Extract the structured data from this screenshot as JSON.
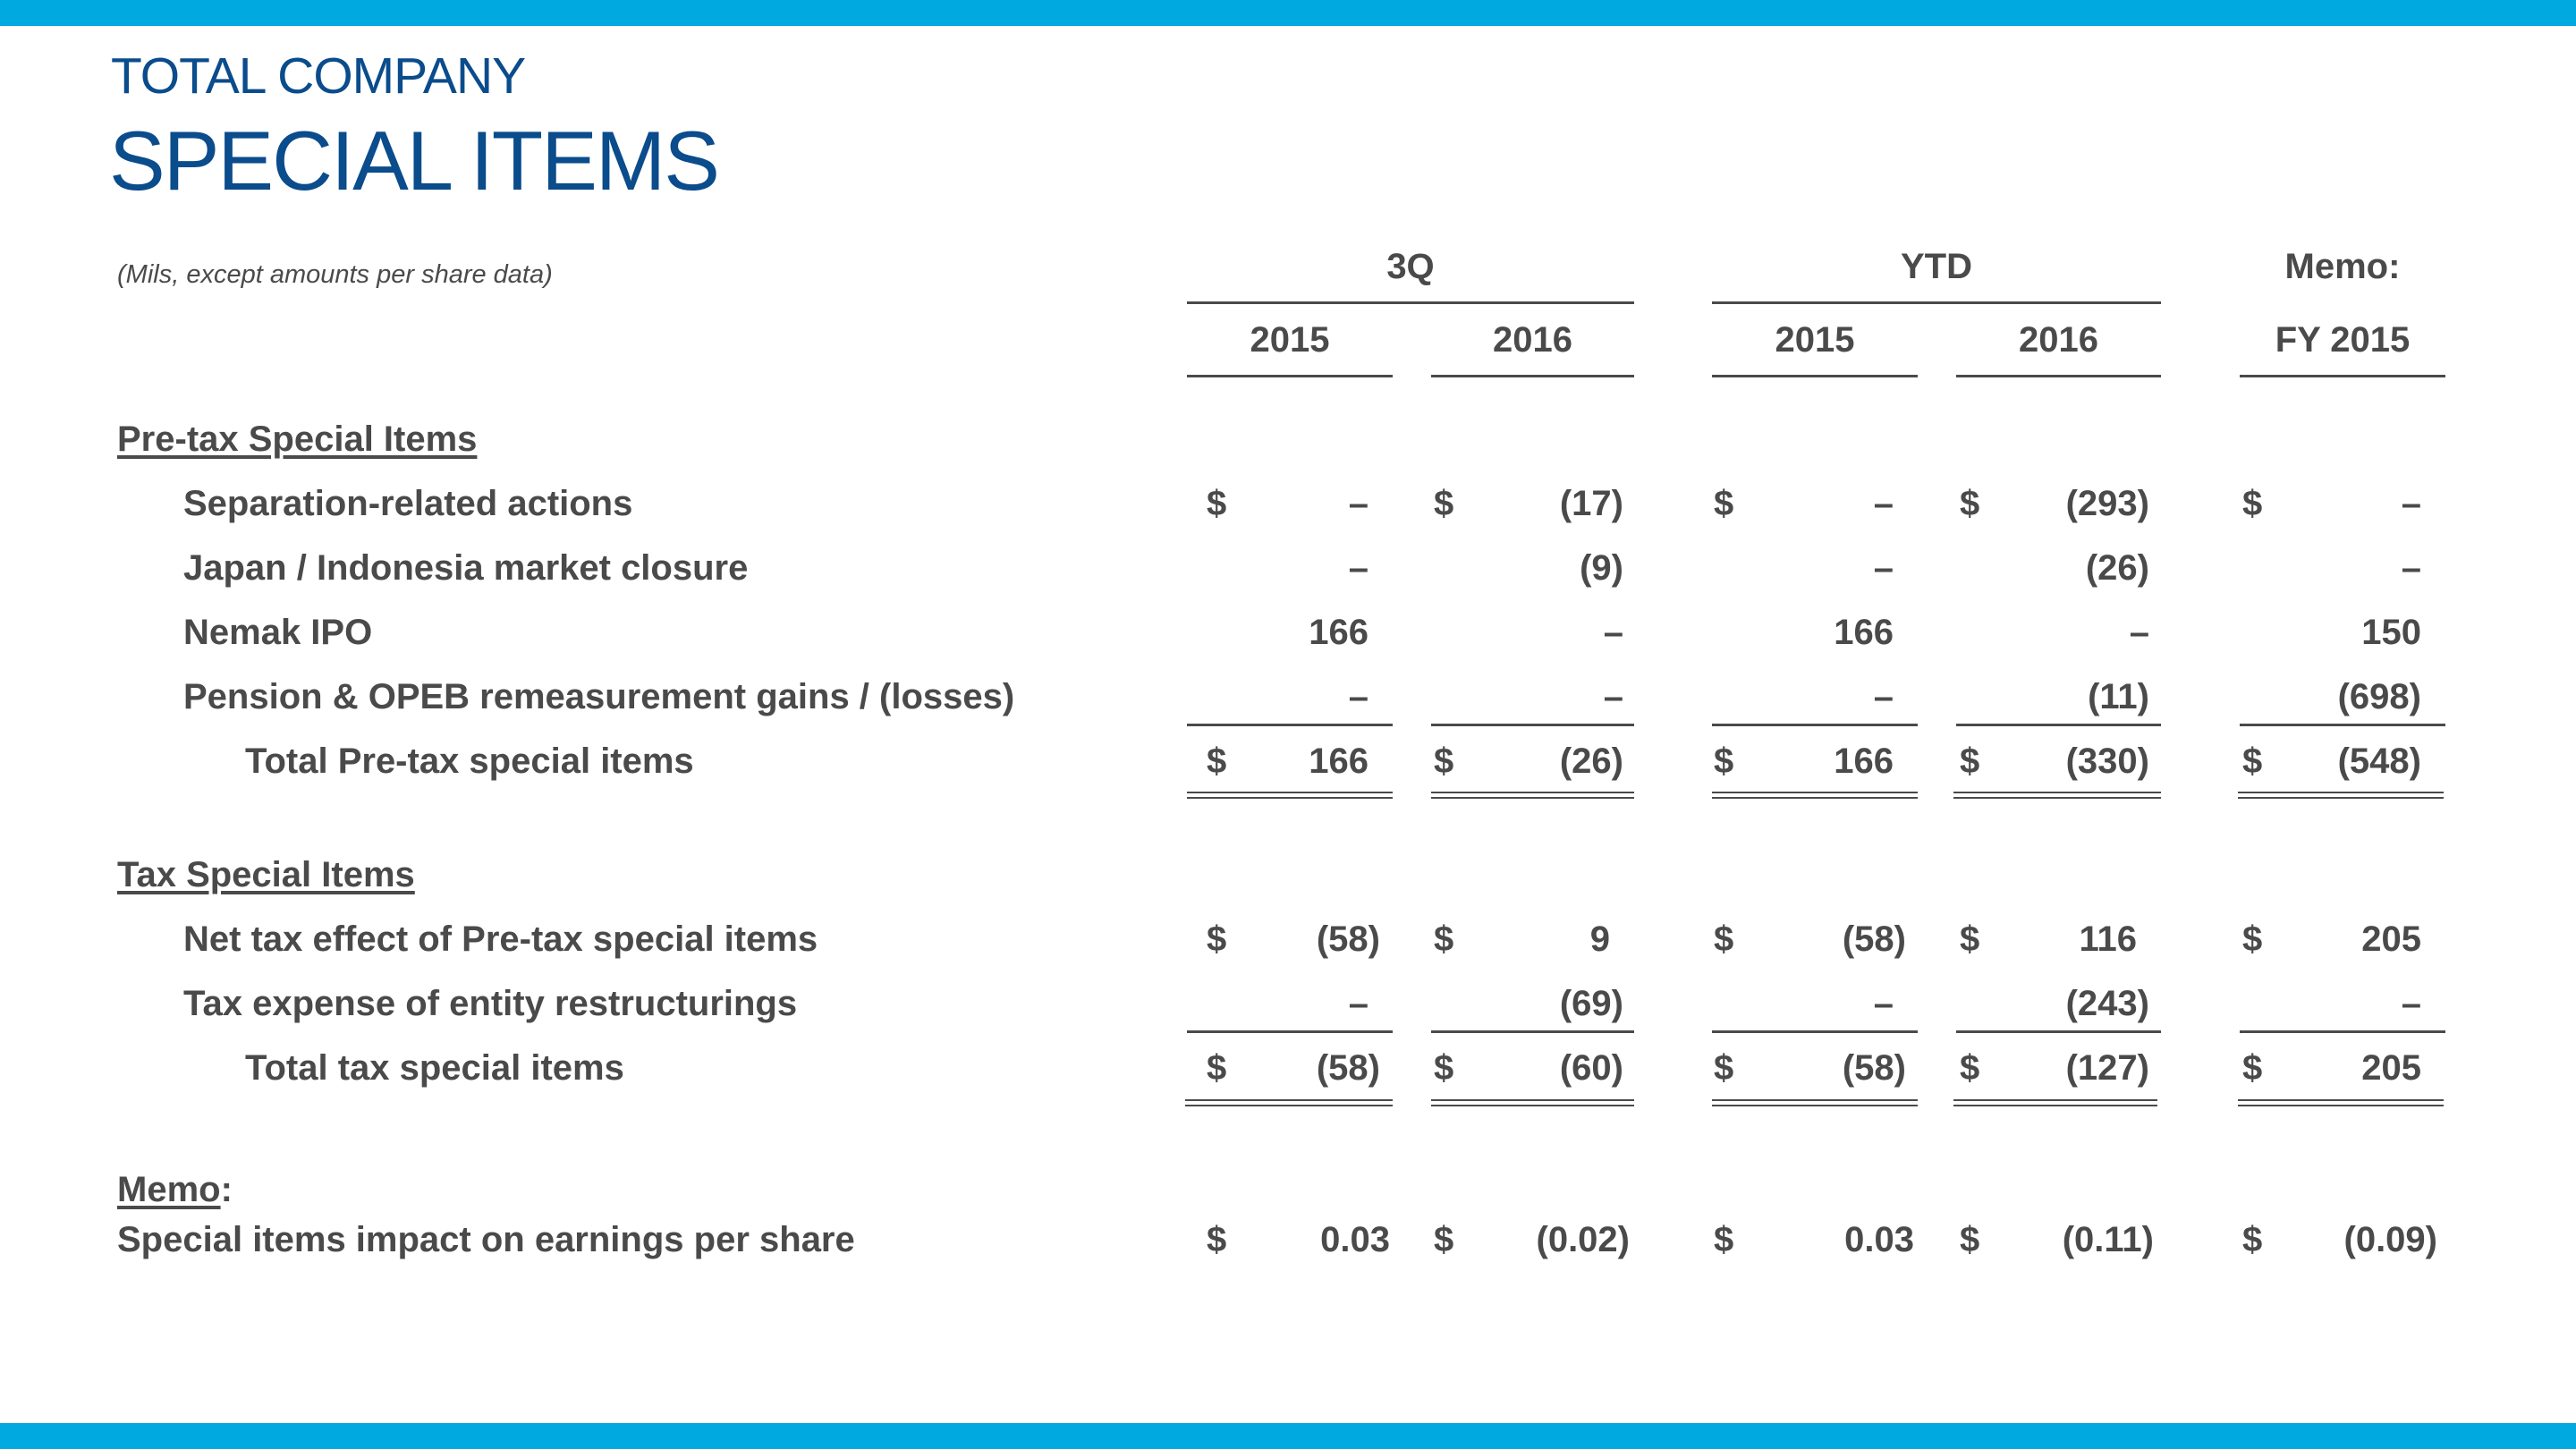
{
  "header": {
    "subtitle": "TOTAL COMPANY",
    "title": "SPECIAL ITEMS",
    "units_note": "(Mils, except amounts per share data)"
  },
  "groups": {
    "q3": "3Q",
    "ytd": "YTD",
    "memo": "Memo:"
  },
  "years": {
    "q3_2015": "2015",
    "q3_2016": "2016",
    "ytd_2015": "2015",
    "ytd_2016": "2016",
    "memo_fy": "FY 2015"
  },
  "currency": "$",
  "sections": {
    "pretax": "Pre-tax Special Items",
    "tax": "Tax Special Items",
    "memo_label": "Memo",
    "memo_colon": ":"
  },
  "rows": [
    {
      "label": "Separation-related actions",
      "values": [
        "–",
        "(17)",
        "–",
        "(293)",
        "–"
      ]
    },
    {
      "label": "Japan / Indonesia market closure",
      "values": [
        "–",
        "(9)",
        "–",
        "(26)",
        "–"
      ]
    },
    {
      "label": "Nemak IPO",
      "values": [
        "166",
        "–",
        "166",
        "–",
        "150"
      ]
    },
    {
      "label": "Pension & OPEB remeasurement  gains / (losses)",
      "values": [
        "–",
        "–",
        "–",
        "(11)",
        "(698)"
      ]
    },
    {
      "label": "Total Pre-tax special items",
      "values": [
        "166",
        "(26)",
        "166",
        "(330)",
        "(548)"
      ]
    },
    {
      "label": "Net tax effect of Pre-tax special items",
      "values": [
        "(58)",
        "9",
        "(58)",
        "116",
        "205"
      ]
    },
    {
      "label": "Tax expense of entity restructurings",
      "values": [
        "–",
        "(69)",
        "–",
        "(243)",
        "–"
      ]
    },
    {
      "label": "Total tax special items",
      "values": [
        "(58)",
        "(60)",
        "(58)",
        "(127)",
        "205"
      ]
    },
    {
      "label": "Special items impact on earnings per share",
      "values": [
        "0.03",
        "(0.02)",
        "0.03",
        "(0.11)",
        "(0.09)"
      ]
    }
  ]
}
